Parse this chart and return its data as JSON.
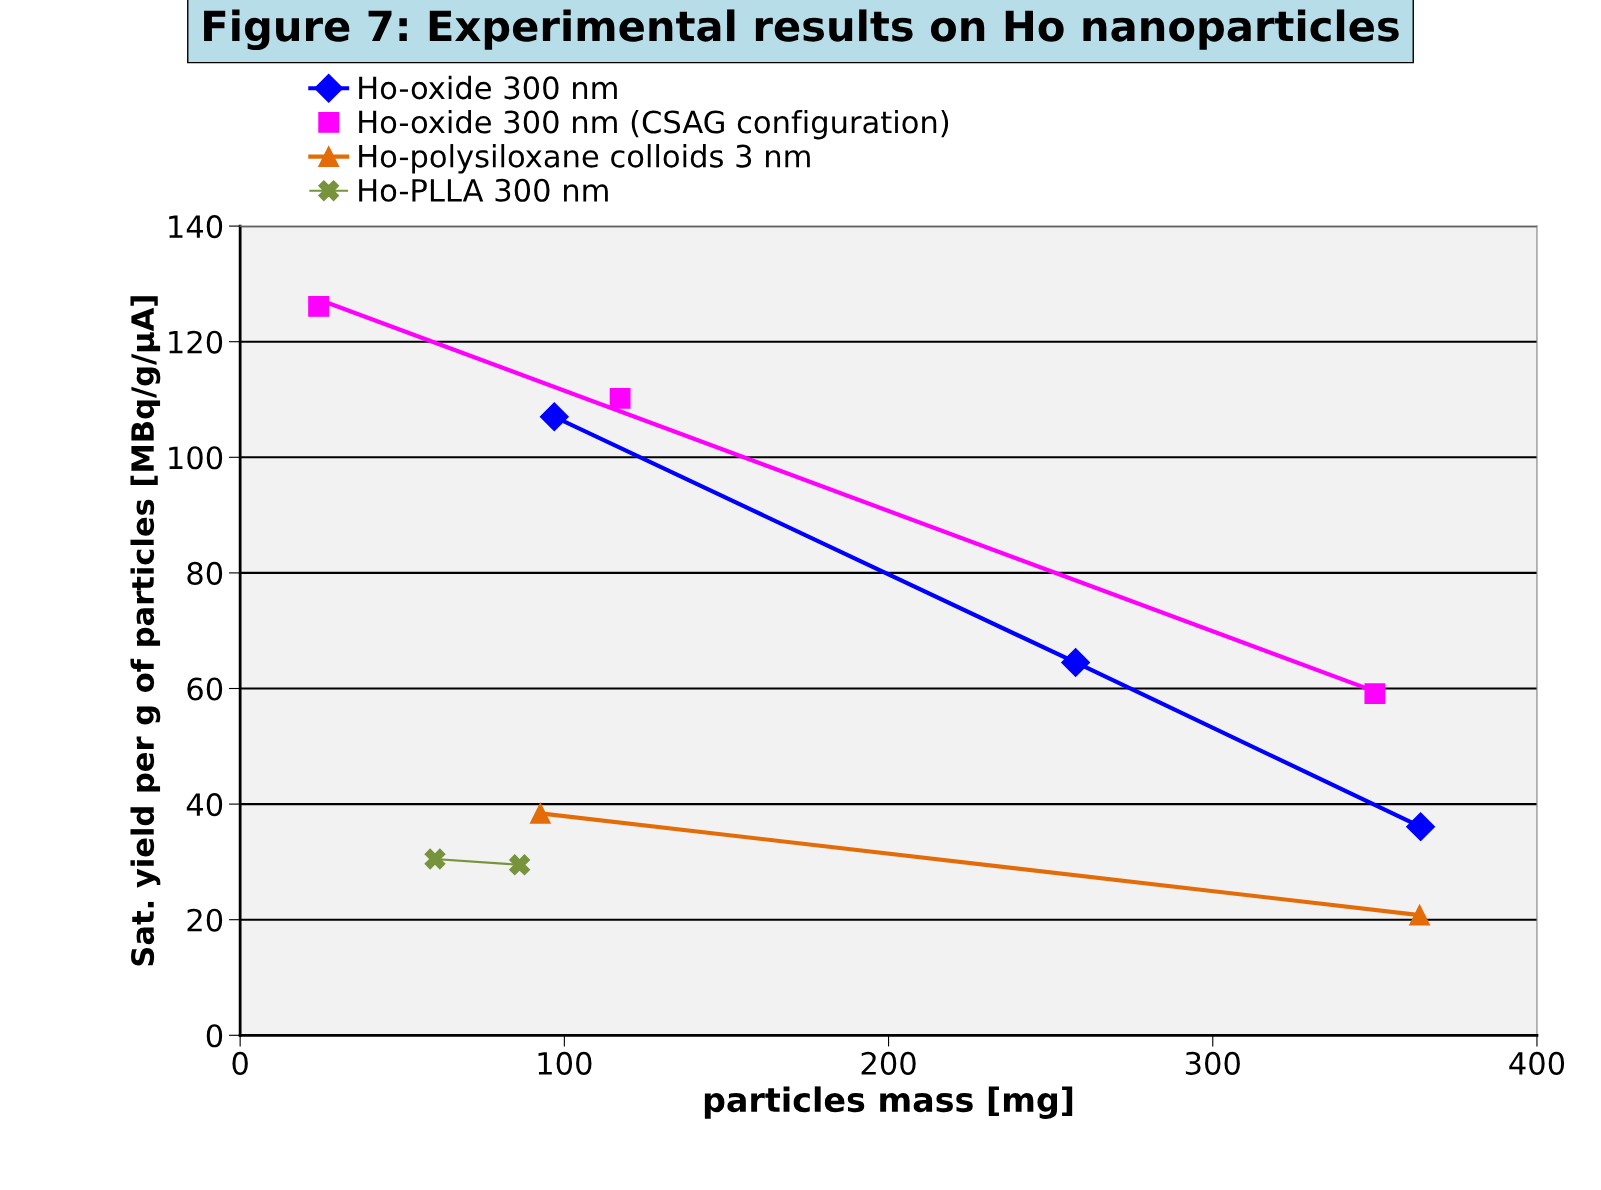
{
  "chart_data": {
    "type": "scatter",
    "title": "Figure 7: Experimental results on Ho nanoparticles",
    "xlabel": "particles mass [mg]",
    "ylabel": "Sat. yield per g of particles [MBq/g/µA]",
    "xlim": [
      0,
      400
    ],
    "ylim": [
      0,
      140
    ],
    "xticks": [
      0,
      100,
      200,
      300,
      400
    ],
    "yticks": [
      0,
      20,
      40,
      60,
      80,
      100,
      120,
      140
    ],
    "grid": "y",
    "legend": "top left",
    "series": [
      {
        "name": "Ho-oxide 300 nm",
        "color": "#0000ff",
        "type": "line",
        "marker": "diamond",
        "x": [
          96.9,
          257.7,
          364.1
        ],
        "values": [
          107.0,
          64.5,
          36.1
        ]
      },
      {
        "name": "Ho-oxide 300 nm (CSAG configuration)",
        "color": "#ff00ff",
        "type": "scatter",
        "marker": "square",
        "x": [
          24.2,
          117.2,
          350.0
        ],
        "values": [
          126.1,
          110.2,
          59.1
        ]
      },
      {
        "color": "#ff00ff",
        "type": "line",
        "marker": "none",
        "x": [
          24.2,
          350.0
        ],
        "values": [
          127.3,
          59.5
        ]
      },
      {
        "name": "Ho-polysiloxane colloids 3 nm",
        "color": "#e36c09",
        "type": "line",
        "marker": "triangle",
        "x": [
          92.6,
          363.8
        ],
        "values": [
          38.4,
          20.8
        ]
      },
      {
        "name": "Ho-PLLA 300 nm",
        "color": "#77933c",
        "type": "line",
        "marker": "cross",
        "x": [
          60.1,
          86.2
        ],
        "values": [
          30.5,
          29.5
        ]
      }
    ]
  }
}
